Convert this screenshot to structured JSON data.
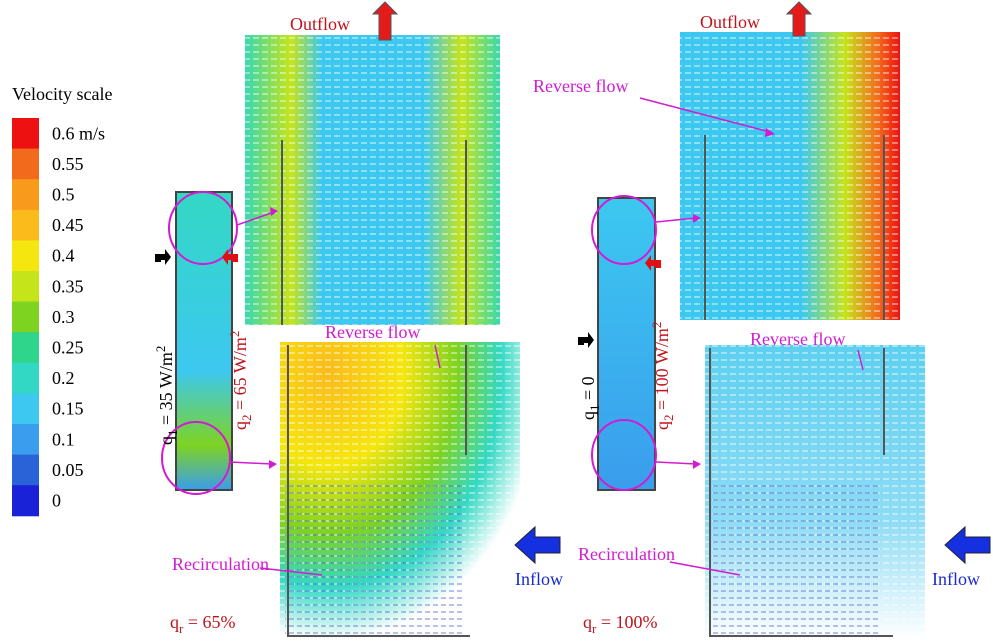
{
  "legend": {
    "title": "Velocity scale",
    "items": [
      {
        "label": "0.6 m/s",
        "color": "#ee1111"
      },
      {
        "label": "0.55",
        "color": "#f26b1d"
      },
      {
        "label": "0.5",
        "color": "#f89a1c"
      },
      {
        "label": "0.45",
        "color": "#fbbb1a"
      },
      {
        "label": "0.4",
        "color": "#f5e60f"
      },
      {
        "label": "0.35",
        "color": "#c6e41a"
      },
      {
        "label": "0.3",
        "color": "#7ed321"
      },
      {
        "label": "0.25",
        "color": "#2fd58a"
      },
      {
        "label": "0.2",
        "color": "#33d8c4"
      },
      {
        "label": "0.15",
        "color": "#3cc8f0"
      },
      {
        "label": "0.1",
        "color": "#3a9ded"
      },
      {
        "label": "0.05",
        "color": "#2a63d8"
      },
      {
        "label": "0",
        "color": "#1a22d8"
      }
    ]
  },
  "panels": [
    {
      "outflow": "Outflow",
      "reverse_flow": "Reverse flow",
      "recirculation": "Recirculation",
      "inflow": "Inflow",
      "q1": {
        "symbol": "q",
        "subscript": "1",
        "text": " = 35 W/m",
        "superscript": "2"
      },
      "q2": {
        "symbol": "q",
        "subscript": "2",
        "text": " = 65 W/m",
        "superscript": "2"
      },
      "qr": {
        "symbol": "q",
        "subscript": "r",
        "text": " = 65%"
      }
    },
    {
      "outflow": "Outflow",
      "reverse_flow_top": "Reverse flow",
      "reverse_flow": "Reverse flow",
      "recirculation": "Recirculation",
      "inflow": "Inflow",
      "q1": {
        "symbol": "q",
        "subscript": "1",
        "text": " = 0"
      },
      "q2": {
        "symbol": "q",
        "subscript": "2",
        "text": " = 100 W/m",
        "superscript": "2"
      },
      "qr": {
        "symbol": "q",
        "subscript": "r",
        "text": " = 100%"
      }
    }
  ]
}
